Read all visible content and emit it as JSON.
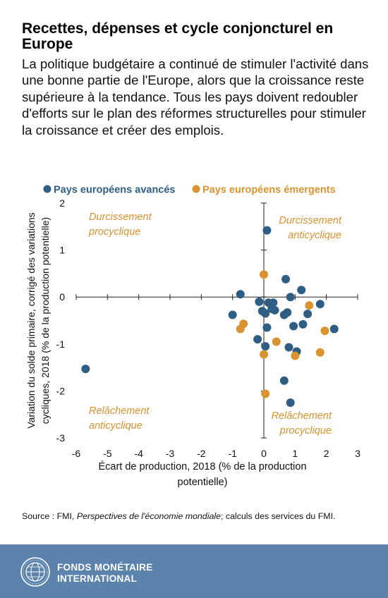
{
  "title": "Recettes, dépenses et cycle conjoncturel en Europe",
  "subtitle": "La politique budgétaire a continué de stimuler l'activité dans une bonne partie de l'Europe, alors que la croissance reste supérieure à la tendance. Tous les pays doivent redoubler d'efforts sur le plan des réformes structurelles pour stimuler la croissance et créer des emplois.",
  "source": {
    "prefix": "Source : FMI, ",
    "italic": "Perspectives de l'économie mondiale",
    "suffix": "; calculs des services du FMI."
  },
  "footer": {
    "org_line1": "FONDS MONÉTAIRE",
    "org_line2": "INTERNATIONAL",
    "logo_icon": "imf-seal-icon"
  },
  "colors": {
    "advanced": "#2e5e84",
    "emerging": "#d9932f",
    "quadrant_label": "#d9932f",
    "footer_bg": "#5c83ab"
  },
  "chart_data": {
    "type": "scatter",
    "xlabel_lines": [
      "Écart de production, 2018 (% de la production",
      "potentielle)"
    ],
    "ylabel_lines": [
      "Variation du solde primaire, corrigé des variations",
      "cycliques, 2018 (% de la production potentielle)"
    ],
    "xlim": [
      -6,
      3
    ],
    "ylim": [
      -3,
      2
    ],
    "xticks": [
      -6,
      -5,
      -4,
      -3,
      -2,
      -1,
      0,
      1,
      2,
      3
    ],
    "yticks": [
      -3,
      -2,
      -1,
      0,
      1,
      2
    ],
    "legend_position": "top",
    "quadrant_labels": [
      {
        "lines": [
          "Durcissement",
          "procyclique"
        ],
        "quadrant": "top-left"
      },
      {
        "lines": [
          "Durcissement",
          "anticyclique"
        ],
        "quadrant": "top-right"
      },
      {
        "lines": [
          "Relâchement",
          "anticyclique"
        ],
        "quadrant": "bottom-left"
      },
      {
        "lines": [
          "Relâchement",
          "procyclique"
        ],
        "quadrant": "bottom-right"
      }
    ],
    "series": [
      {
        "name": "Pays européens avancés",
        "color": "#2e5e84",
        "points": [
          [
            -5.7,
            -1.53
          ],
          [
            -1.0,
            -0.38
          ],
          [
            -0.75,
            0.06
          ],
          [
            0.1,
            1.42
          ],
          [
            -0.15,
            -0.1
          ],
          [
            -0.05,
            -0.3
          ],
          [
            0.05,
            -0.35
          ],
          [
            0.15,
            -0.12
          ],
          [
            0.25,
            -0.25
          ],
          [
            0.3,
            -0.12
          ],
          [
            0.35,
            -0.28
          ],
          [
            0.1,
            -0.65
          ],
          [
            -0.2,
            -0.9
          ],
          [
            0.05,
            -1.05
          ],
          [
            0.7,
            0.38
          ],
          [
            0.85,
            0.0
          ],
          [
            0.65,
            -0.38
          ],
          [
            0.75,
            -0.33
          ],
          [
            0.95,
            -0.62
          ],
          [
            1.2,
            0.15
          ],
          [
            1.25,
            -0.58
          ],
          [
            1.4,
            -0.36
          ],
          [
            1.8,
            -0.15
          ],
          [
            2.25,
            -0.68
          ],
          [
            0.8,
            -1.07
          ],
          [
            1.05,
            -1.16
          ],
          [
            0.65,
            -1.78
          ],
          [
            0.85,
            -2.25
          ]
        ]
      },
      {
        "name": "Pays européens émergents",
        "color": "#d9932f",
        "points": [
          [
            0.0,
            0.48
          ],
          [
            1.45,
            -0.18
          ],
          [
            -0.65,
            -0.57
          ],
          [
            -0.75,
            -0.68
          ],
          [
            0.4,
            -0.95
          ],
          [
            0.0,
            -1.22
          ],
          [
            1.0,
            -1.25
          ],
          [
            1.8,
            -1.18
          ],
          [
            1.95,
            -0.72
          ],
          [
            0.05,
            -2.06
          ]
        ]
      }
    ]
  }
}
